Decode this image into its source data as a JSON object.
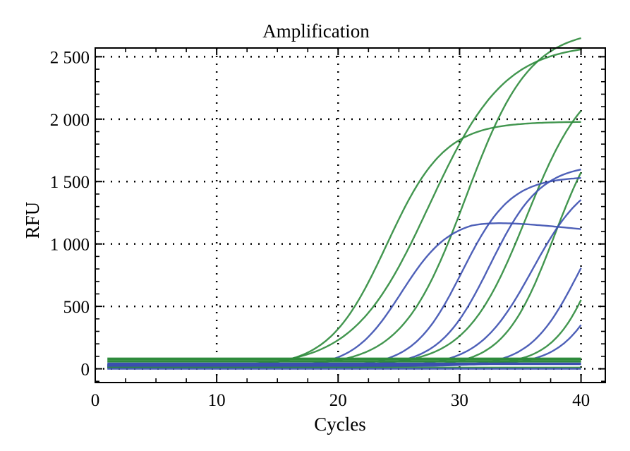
{
  "chart_data": {
    "type": "line",
    "title": "Amplification",
    "xlabel": "Cycles",
    "ylabel": "RFU",
    "xlim": [
      0,
      42
    ],
    "ylim": [
      -110,
      2570
    ],
    "x_ticks": [
      0,
      10,
      20,
      30,
      40
    ],
    "x_tick_labels": [
      "0",
      "10",
      "20",
      "30",
      "40"
    ],
    "y_ticks": [
      0,
      500,
      1000,
      1500,
      2000,
      2500
    ],
    "y_tick_labels": [
      "0",
      "500",
      "1 000",
      "1 500",
      "2 000",
      "2 500"
    ],
    "grid": true,
    "legend": "none",
    "colors": {
      "green": "#2e8b3c",
      "blue": "#3b4fb0",
      "threshold": "#1f5a3a"
    },
    "series": [
      {
        "color": "green",
        "baseline": 15,
        "plateau": 2590,
        "midpoint": 27.5,
        "slope": 0.32,
        "x_start": 1,
        "x_end": 40
      },
      {
        "color": "green",
        "baseline": 10,
        "plateau": 1970,
        "midpoint": 24.0,
        "slope": 0.42,
        "x_start": 1,
        "x_end": 40
      },
      {
        "color": "green",
        "baseline": 20,
        "plateau": 2700,
        "midpoint": 30.5,
        "slope": 0.38,
        "x_start": 1,
        "x_end": 40
      },
      {
        "color": "green",
        "baseline": 25,
        "plateau": 2380,
        "midpoint": 35.5,
        "slope": 0.4,
        "x_start": 1,
        "x_end": 40
      },
      {
        "color": "green",
        "baseline": 15,
        "plateau": 2100,
        "midpoint": 37.8,
        "slope": 0.48,
        "x_start": 1,
        "x_end": 40
      },
      {
        "color": "green",
        "baseline": 30,
        "plateau": 2000,
        "midpoint": 42.0,
        "slope": 0.52,
        "x_start": 1,
        "x_end": 40
      },
      {
        "color": "blue",
        "baseline": 10,
        "plateau": 1200,
        "midpoint": 25.2,
        "slope": 0.5,
        "x_start": 1,
        "x_end": 40,
        "decline_start": 31,
        "decline_rate": 10
      },
      {
        "color": "blue",
        "baseline": 15,
        "plateau": 1525,
        "midpoint": 30.2,
        "slope": 0.5,
        "x_start": 1,
        "x_end": 40
      },
      {
        "color": "blue",
        "baseline": 20,
        "plateau": 1620,
        "midpoint": 32.5,
        "slope": 0.48,
        "x_start": 1,
        "x_end": 40
      },
      {
        "color": "blue",
        "baseline": 15,
        "plateau": 1560,
        "midpoint": 36.0,
        "slope": 0.45,
        "x_start": 1,
        "x_end": 40
      },
      {
        "color": "blue",
        "baseline": 20,
        "plateau": 1500,
        "midpoint": 39.8,
        "slope": 0.5,
        "x_start": 1,
        "x_end": 40
      },
      {
        "color": "blue",
        "baseline": 30,
        "plateau": 1500,
        "midpoint": 42.5,
        "slope": 0.52,
        "x_start": 1,
        "x_end": 40
      },
      {
        "color": "green",
        "baseline": 10,
        "plateau": 0,
        "midpoint": 40,
        "slope": 1,
        "x_start": 1,
        "x_end": 40
      },
      {
        "color": "blue",
        "baseline": 0,
        "plateau": 0,
        "midpoint": 40,
        "slope": 1,
        "x_start": 1,
        "x_end": 40
      }
    ],
    "thresholds": [
      {
        "value": 80,
        "color": "green"
      },
      {
        "value": 60,
        "color": "green"
      },
      {
        "value": 40,
        "color": "blue"
      }
    ]
  }
}
